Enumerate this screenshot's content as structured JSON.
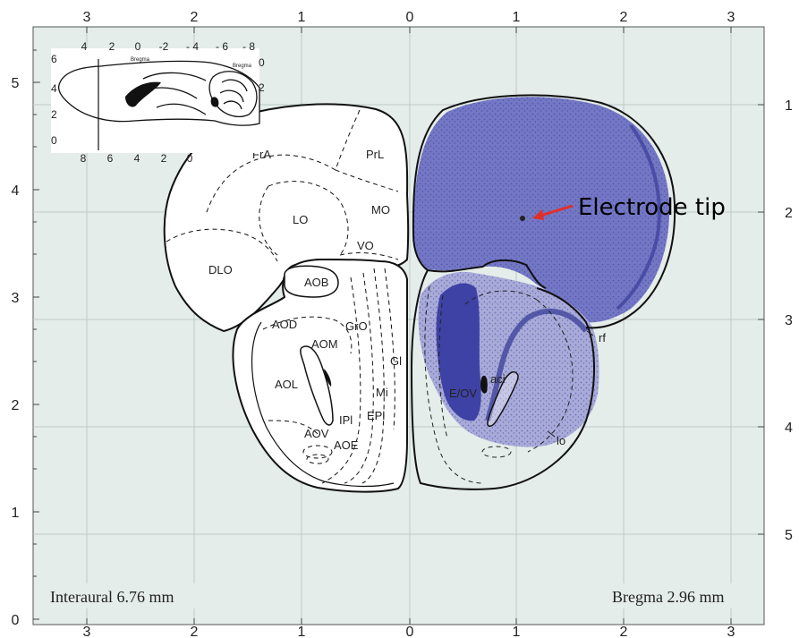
{
  "top_axis_labels": [
    "3",
    "2",
    "1",
    "0",
    "1",
    "2",
    "3"
  ],
  "bottom_axis_labels": [
    "3",
    "2",
    "1",
    "0",
    "1",
    "2",
    "3"
  ],
  "left_axis_labels": [
    "5",
    "4",
    "3",
    "2",
    "1",
    "0"
  ],
  "right_axis_labels": [
    "1",
    "2",
    "3",
    "4",
    "5"
  ],
  "interaural_label": "Interaural 6.76 mm",
  "bregma_label": "Bregma 2.96 mm",
  "electrode_label": "Electrode tip",
  "regions": {
    "fra": "FrA",
    "prl": "PrL",
    "lo": "LO",
    "mo": "MO",
    "vo": "VO",
    "dlo": "DLO",
    "aob": "AOB",
    "aod": "AOD",
    "gro": "GrO",
    "aom": "AOM",
    "gl": "Gl",
    "aol": "AOL",
    "mi": "Mi",
    "epl": "EPl",
    "ipl": "IPl",
    "aov": "AOV",
    "aoe": "AOE",
    "rf": "rf",
    "eov": "E/OV",
    "aci": "aci",
    "lo_tract": "lo"
  },
  "inset": {
    "top_ticks": [
      "4",
      "2",
      "0",
      "-2",
      "- 4",
      "- 6",
      "- 8"
    ],
    "bottom_ticks": [
      "8",
      "6",
      "4",
      "2",
      "0"
    ],
    "left_ticks": [
      "6",
      "4",
      "2",
      "0"
    ],
    "right_ticks": [
      "0",
      "2"
    ],
    "bregma_left": "Bregma",
    "bregma_right": "Bregma"
  },
  "colors": {
    "background": "#e4ede9",
    "grid": "#bfc9c5",
    "nissl_stain": "#4b4fb0",
    "arrow": "#e0302a"
  }
}
